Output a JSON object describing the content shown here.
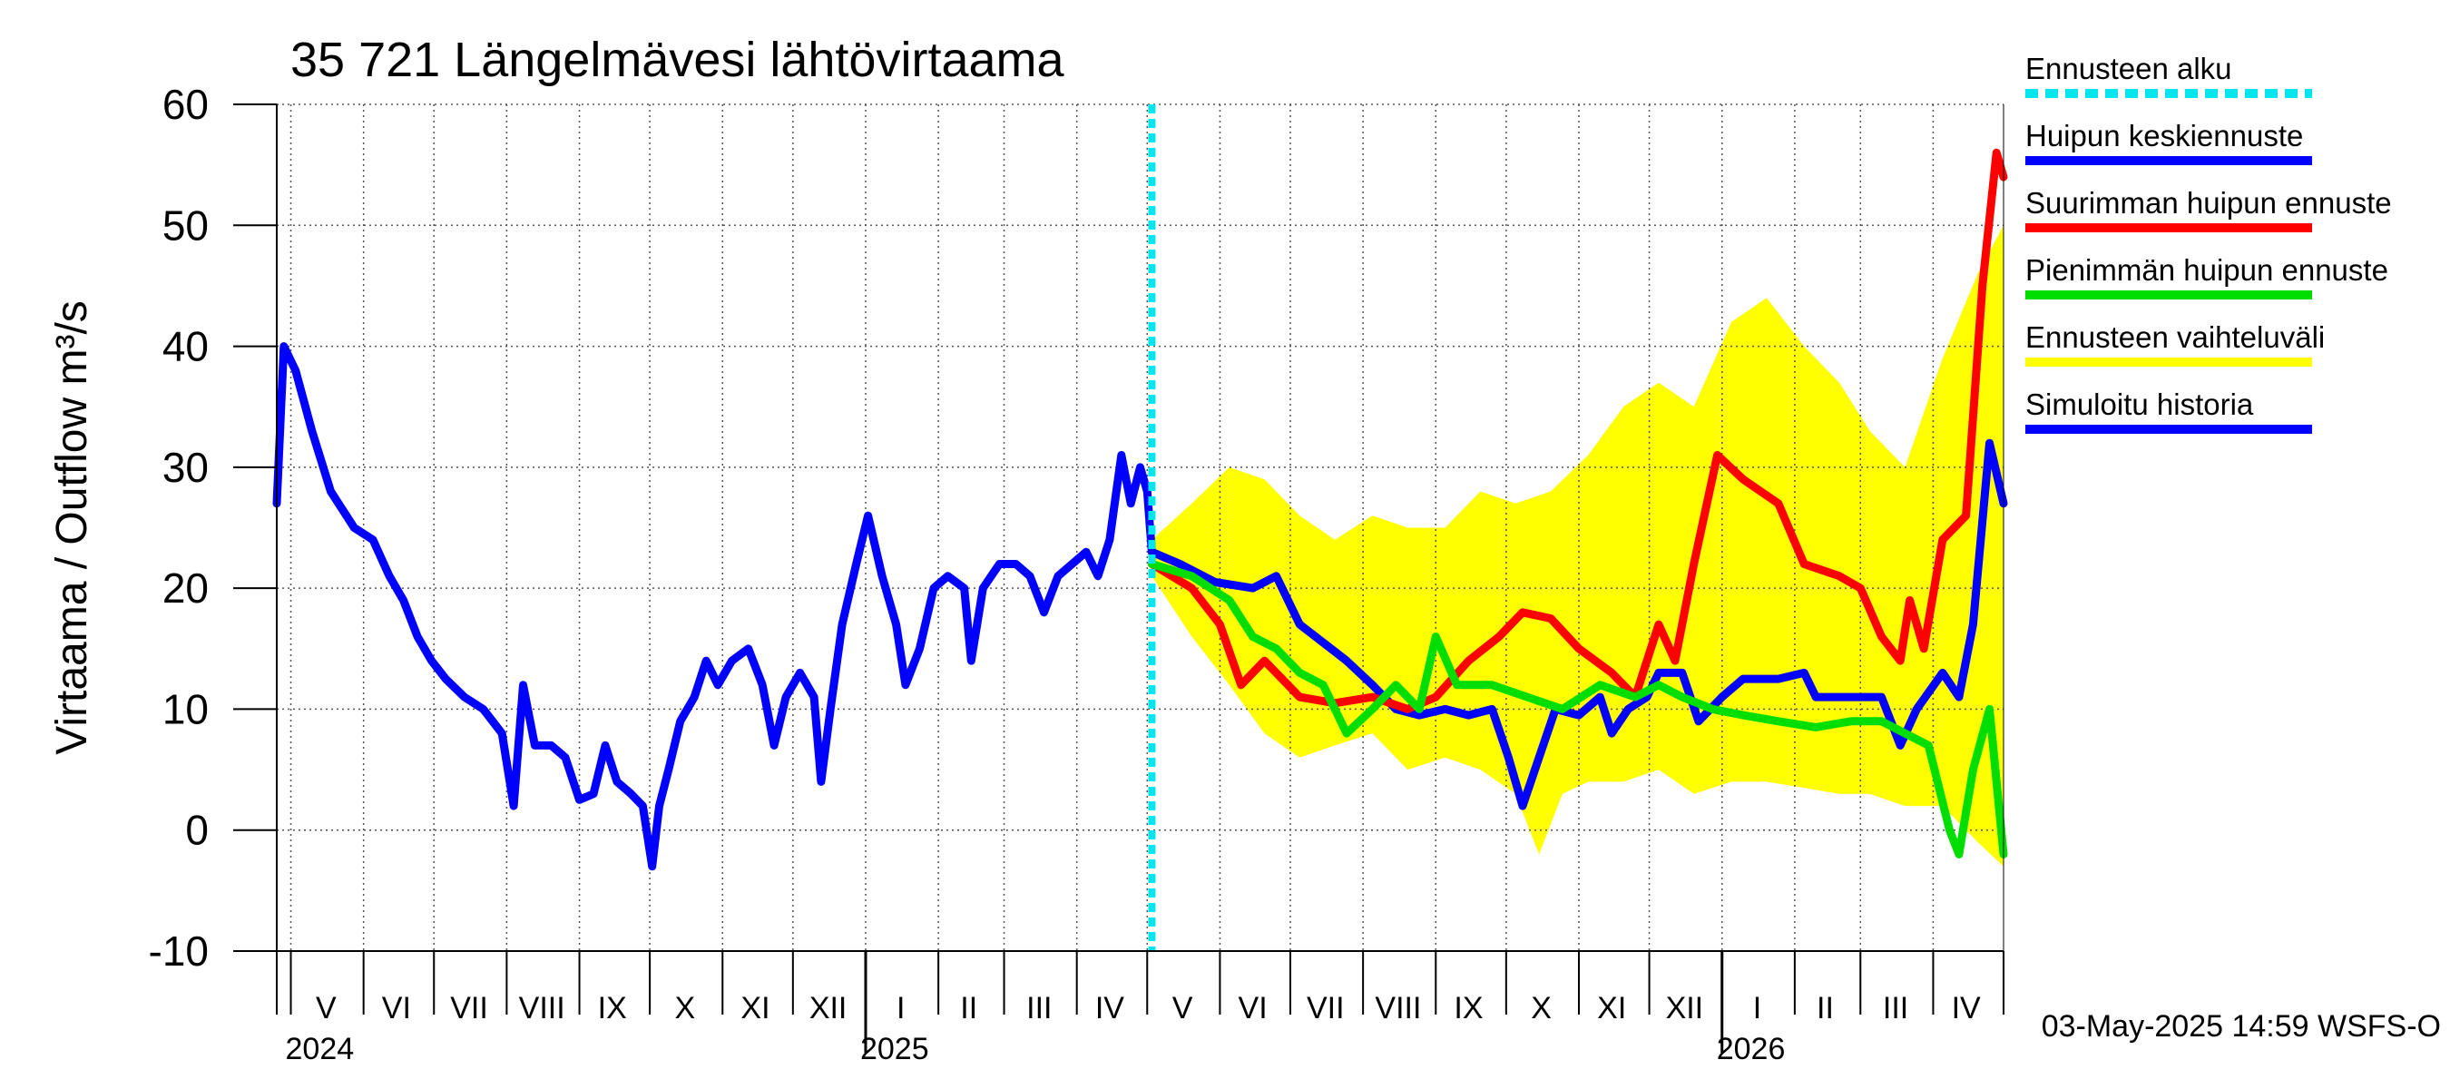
{
  "chart_data": {
    "type": "line",
    "title": "35 721 Längelmävesi lähtövirtaama",
    "ylabel": "Virtaama / Outflow    m³/s",
    "ylim": [
      -10,
      60
    ],
    "yticks": [
      -10,
      0,
      10,
      20,
      30,
      40,
      50,
      60
    ],
    "xlim": [
      "2024-04-25",
      "2026-05-01"
    ],
    "grid": true,
    "months": [
      {
        "label": "V",
        "date": "2024-05-16"
      },
      {
        "label": "VI",
        "date": "2024-06-15"
      },
      {
        "label": "VII",
        "date": "2024-07-16"
      },
      {
        "label": "VIII",
        "date": "2024-08-16"
      },
      {
        "label": "IX",
        "date": "2024-09-15"
      },
      {
        "label": "X",
        "date": "2024-10-16"
      },
      {
        "label": "XI",
        "date": "2024-11-15"
      },
      {
        "label": "XII",
        "date": "2024-12-16"
      },
      {
        "label": "I",
        "date": "2025-01-16"
      },
      {
        "label": "II",
        "date": "2025-02-14"
      },
      {
        "label": "III",
        "date": "2025-03-16"
      },
      {
        "label": "IV",
        "date": "2025-04-15"
      },
      {
        "label": "V",
        "date": "2025-05-16"
      },
      {
        "label": "VI",
        "date": "2025-06-15"
      },
      {
        "label": "VII",
        "date": "2025-07-16"
      },
      {
        "label": "VIII",
        "date": "2025-08-16"
      },
      {
        "label": "IX",
        "date": "2025-09-15"
      },
      {
        "label": "X",
        "date": "2025-10-16"
      },
      {
        "label": "XI",
        "date": "2025-11-15"
      },
      {
        "label": "XII",
        "date": "2025-12-16"
      },
      {
        "label": "I",
        "date": "2026-01-16"
      },
      {
        "label": "II",
        "date": "2026-02-14"
      },
      {
        "label": "III",
        "date": "2026-03-16"
      },
      {
        "label": "IV",
        "date": "2026-04-15"
      }
    ],
    "years": [
      {
        "label": "2024",
        "date": "2024-05-01"
      },
      {
        "label": "2025",
        "date": "2025-01-01"
      },
      {
        "label": "2026",
        "date": "2026-01-01"
      }
    ],
    "forecast_start": "2025-05-03",
    "series": [
      {
        "name": "Simuloitu historia",
        "color": "#0000ff",
        "points": [
          [
            "2024-04-25",
            27
          ],
          [
            "2024-04-28",
            40
          ],
          [
            "2024-05-03",
            38
          ],
          [
            "2024-05-10",
            33
          ],
          [
            "2024-05-18",
            28
          ],
          [
            "2024-05-28",
            25
          ],
          [
            "2024-06-05",
            24
          ],
          [
            "2024-06-12",
            21
          ],
          [
            "2024-06-18",
            19
          ],
          [
            "2024-06-24",
            16
          ],
          [
            "2024-06-30",
            14
          ],
          [
            "2024-07-06",
            12.5
          ],
          [
            "2024-07-14",
            11
          ],
          [
            "2024-07-22",
            10
          ],
          [
            "2024-07-30",
            8
          ],
          [
            "2024-08-04",
            2
          ],
          [
            "2024-08-08",
            12
          ],
          [
            "2024-08-13",
            7
          ],
          [
            "2024-08-20",
            7
          ],
          [
            "2024-08-26",
            6
          ],
          [
            "2024-09-01",
            2.5
          ],
          [
            "2024-09-07",
            3
          ],
          [
            "2024-09-12",
            7
          ],
          [
            "2024-09-17",
            4
          ],
          [
            "2024-09-23",
            3
          ],
          [
            "2024-09-28",
            2
          ],
          [
            "2024-10-02",
            -3
          ],
          [
            "2024-10-05",
            2
          ],
          [
            "2024-10-09",
            5
          ],
          [
            "2024-10-14",
            9
          ],
          [
            "2024-10-20",
            11
          ],
          [
            "2024-10-25",
            14
          ],
          [
            "2024-10-30",
            12
          ],
          [
            "2024-11-05",
            14
          ],
          [
            "2024-11-12",
            15
          ],
          [
            "2024-11-18",
            12
          ],
          [
            "2024-11-23",
            7
          ],
          [
            "2024-11-28",
            11
          ],
          [
            "2024-12-04",
            13
          ],
          [
            "2024-12-10",
            11
          ],
          [
            "2024-12-13",
            4
          ],
          [
            "2024-12-17",
            10
          ],
          [
            "2024-12-22",
            17
          ],
          [
            "2024-12-28",
            22
          ],
          [
            "2025-01-02",
            26
          ],
          [
            "2025-01-08",
            21
          ],
          [
            "2025-01-14",
            17
          ],
          [
            "2025-01-18",
            12
          ],
          [
            "2025-01-24",
            15
          ],
          [
            "2025-01-30",
            20
          ],
          [
            "2025-02-05",
            21
          ],
          [
            "2025-02-12",
            20
          ],
          [
            "2025-02-15",
            14
          ],
          [
            "2025-02-20",
            20
          ],
          [
            "2025-02-27",
            22
          ],
          [
            "2025-03-06",
            22
          ],
          [
            "2025-03-12",
            21
          ],
          [
            "2025-03-18",
            18
          ],
          [
            "2025-03-24",
            21
          ],
          [
            "2025-03-30",
            22
          ],
          [
            "2025-04-05",
            23
          ],
          [
            "2025-04-10",
            21
          ],
          [
            "2025-04-15",
            24
          ],
          [
            "2025-04-20",
            31
          ],
          [
            "2025-04-24",
            27
          ],
          [
            "2025-04-28",
            30
          ],
          [
            "2025-05-01",
            28
          ],
          [
            "2025-05-03",
            23
          ]
        ]
      },
      {
        "name": "Huipun keskiennuste",
        "color": "#0000ff",
        "points": [
          [
            "2025-05-03",
            23
          ],
          [
            "2025-05-15",
            22
          ],
          [
            "2025-05-30",
            20.5
          ],
          [
            "2025-06-15",
            20
          ],
          [
            "2025-06-25",
            21
          ],
          [
            "2025-07-05",
            17
          ],
          [
            "2025-07-15",
            15.5
          ],
          [
            "2025-07-25",
            14
          ],
          [
            "2025-08-05",
            12
          ],
          [
            "2025-08-15",
            10
          ],
          [
            "2025-08-25",
            9.5
          ],
          [
            "2025-09-05",
            10
          ],
          [
            "2025-09-15",
            9.5
          ],
          [
            "2025-09-25",
            10
          ],
          [
            "2025-10-02",
            6
          ],
          [
            "2025-10-08",
            2
          ],
          [
            "2025-10-15",
            6
          ],
          [
            "2025-10-22",
            10
          ],
          [
            "2025-11-01",
            9.5
          ],
          [
            "2025-11-10",
            11
          ],
          [
            "2025-11-15",
            8
          ],
          [
            "2025-11-22",
            10
          ],
          [
            "2025-11-30",
            11
          ],
          [
            "2025-12-05",
            13
          ],
          [
            "2025-12-15",
            13
          ],
          [
            "2025-12-22",
            9
          ],
          [
            "2026-01-01",
            11
          ],
          [
            "2026-01-10",
            12.5
          ],
          [
            "2026-01-25",
            12.5
          ],
          [
            "2026-02-05",
            13
          ],
          [
            "2026-02-10",
            11
          ],
          [
            "2026-02-25",
            11
          ],
          [
            "2026-03-10",
            11
          ],
          [
            "2026-03-18",
            7
          ],
          [
            "2026-03-25",
            10
          ],
          [
            "2026-04-05",
            13
          ],
          [
            "2026-04-12",
            11
          ],
          [
            "2026-04-18",
            17
          ],
          [
            "2026-04-25",
            32
          ],
          [
            "2026-05-01",
            27
          ]
        ]
      },
      {
        "name": "Suurimman huipun ennuste",
        "color": "#ff0000",
        "points": [
          [
            "2025-05-03",
            22
          ],
          [
            "2025-05-20",
            20
          ],
          [
            "2025-06-01",
            17
          ],
          [
            "2025-06-10",
            12
          ],
          [
            "2025-06-20",
            14
          ],
          [
            "2025-07-05",
            11
          ],
          [
            "2025-07-20",
            10.5
          ],
          [
            "2025-08-05",
            11
          ],
          [
            "2025-08-20",
            10
          ],
          [
            "2025-09-01",
            11
          ],
          [
            "2025-09-15",
            14
          ],
          [
            "2025-09-28",
            16
          ],
          [
            "2025-10-08",
            18
          ],
          [
            "2025-10-20",
            17.5
          ],
          [
            "2025-11-01",
            15
          ],
          [
            "2025-11-15",
            13
          ],
          [
            "2025-11-25",
            11
          ],
          [
            "2025-12-05",
            17
          ],
          [
            "2025-12-12",
            14
          ],
          [
            "2025-12-20",
            22
          ],
          [
            "2025-12-30",
            31
          ],
          [
            "2026-01-10",
            29
          ],
          [
            "2026-01-25",
            27
          ],
          [
            "2026-02-05",
            22
          ],
          [
            "2026-02-20",
            21
          ],
          [
            "2026-03-01",
            20
          ],
          [
            "2026-03-10",
            16
          ],
          [
            "2026-03-18",
            14
          ],
          [
            "2026-03-22",
            19
          ],
          [
            "2026-03-28",
            15
          ],
          [
            "2026-04-05",
            24
          ],
          [
            "2026-04-15",
            26
          ],
          [
            "2026-04-22",
            45
          ],
          [
            "2026-04-28",
            56
          ],
          [
            "2026-05-01",
            54
          ]
        ]
      },
      {
        "name": "Pienimmän huipun ennuste",
        "color": "#00dd00",
        "points": [
          [
            "2025-05-03",
            22
          ],
          [
            "2025-05-20",
            21
          ],
          [
            "2025-06-05",
            19
          ],
          [
            "2025-06-15",
            16
          ],
          [
            "2025-06-25",
            15
          ],
          [
            "2025-07-05",
            13
          ],
          [
            "2025-07-15",
            12
          ],
          [
            "2025-07-25",
            8
          ],
          [
            "2025-08-05",
            10
          ],
          [
            "2025-08-15",
            12
          ],
          [
            "2025-08-25",
            10
          ],
          [
            "2025-09-01",
            16
          ],
          [
            "2025-09-10",
            12
          ],
          [
            "2025-09-25",
            12
          ],
          [
            "2025-10-10",
            11
          ],
          [
            "2025-10-25",
            10
          ],
          [
            "2025-11-10",
            12
          ],
          [
            "2025-11-25",
            11
          ],
          [
            "2025-12-05",
            12
          ],
          [
            "2025-12-15",
            11
          ],
          [
            "2025-12-28",
            10
          ],
          [
            "2026-01-10",
            9.5
          ],
          [
            "2026-01-25",
            9
          ],
          [
            "2026-02-10",
            8.5
          ],
          [
            "2026-02-25",
            9
          ],
          [
            "2026-03-10",
            9
          ],
          [
            "2026-03-20",
            8
          ],
          [
            "2026-03-30",
            7
          ],
          [
            "2026-04-08",
            0
          ],
          [
            "2026-04-12",
            -2
          ],
          [
            "2026-04-18",
            5
          ],
          [
            "2026-04-25",
            10
          ],
          [
            "2026-05-01",
            -2
          ]
        ]
      }
    ],
    "band": {
      "name": "Ennusteen vaihteluväli",
      "color": "#ffff00",
      "upper": [
        [
          "2025-05-03",
          24
        ],
        [
          "2025-05-20",
          27
        ],
        [
          "2025-06-05",
          30
        ],
        [
          "2025-06-20",
          29
        ],
        [
          "2025-07-05",
          26
        ],
        [
          "2025-07-20",
          24
        ],
        [
          "2025-08-05",
          26
        ],
        [
          "2025-08-20",
          25
        ],
        [
          "2025-09-05",
          25
        ],
        [
          "2025-09-20",
          28
        ],
        [
          "2025-10-05",
          27
        ],
        [
          "2025-10-20",
          28
        ],
        [
          "2025-11-05",
          31
        ],
        [
          "2025-11-20",
          35
        ],
        [
          "2025-12-05",
          37
        ],
        [
          "2025-12-20",
          35
        ],
        [
          "2026-01-05",
          42
        ],
        [
          "2026-01-20",
          44
        ],
        [
          "2026-02-05",
          40
        ],
        [
          "2026-02-20",
          37
        ],
        [
          "2026-03-05",
          33
        ],
        [
          "2026-03-20",
          30
        ],
        [
          "2026-04-05",
          39
        ],
        [
          "2026-04-20",
          46
        ],
        [
          "2026-05-01",
          50
        ]
      ],
      "lower": [
        [
          "2025-05-03",
          21
        ],
        [
          "2025-05-20",
          16
        ],
        [
          "2025-06-05",
          12
        ],
        [
          "2025-06-20",
          8
        ],
        [
          "2025-07-05",
          6
        ],
        [
          "2025-07-20",
          7
        ],
        [
          "2025-08-05",
          8
        ],
        [
          "2025-08-20",
          5
        ],
        [
          "2025-09-05",
          6
        ],
        [
          "2025-09-20",
          5
        ],
        [
          "2025-10-05",
          3
        ],
        [
          "2025-10-15",
          -2
        ],
        [
          "2025-10-25",
          3
        ],
        [
          "2025-11-05",
          4
        ],
        [
          "2025-11-20",
          4
        ],
        [
          "2025-12-05",
          5
        ],
        [
          "2025-12-20",
          3
        ],
        [
          "2026-01-05",
          4
        ],
        [
          "2026-01-20",
          4
        ],
        [
          "2026-02-05",
          3.5
        ],
        [
          "2026-02-20",
          3
        ],
        [
          "2026-03-05",
          3
        ],
        [
          "2026-03-20",
          2
        ],
        [
          "2026-04-05",
          2
        ],
        [
          "2026-04-20",
          -1
        ],
        [
          "2026-05-01",
          -3
        ]
      ]
    },
    "legend": {
      "position": "right",
      "items": [
        {
          "label": "Ennusteen alku",
          "color": "#00e5ee",
          "style": "dashed"
        },
        {
          "label": "Huipun keskiennuste",
          "color": "#0000ff",
          "style": "solid"
        },
        {
          "label": "Suurimman huipun ennuste",
          "color": "#ff0000",
          "style": "solid"
        },
        {
          "label": "Pienimmän huipun ennuste",
          "color": "#00dd00",
          "style": "solid"
        },
        {
          "label": "Ennusteen vaihteluväli",
          "color": "#ffff00",
          "style": "solid"
        },
        {
          "label": "Simuloitu historia",
          "color": "#0000ff",
          "style": "solid"
        }
      ]
    },
    "footer": "03-May-2025 14:59 WSFS-O"
  }
}
